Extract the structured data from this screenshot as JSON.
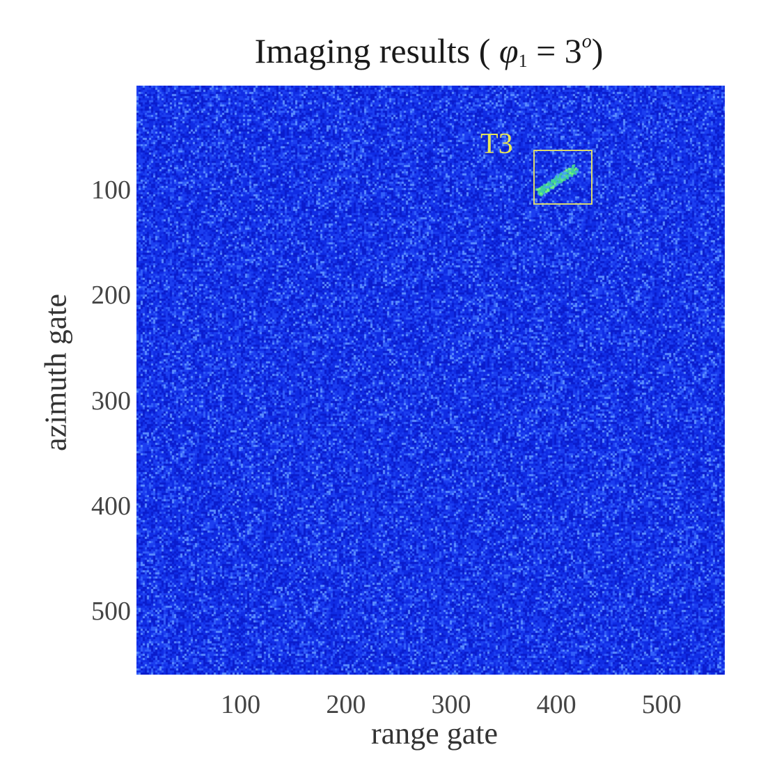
{
  "chart_data": {
    "type": "heatmap",
    "title": "Imaging results ( φ1 = 3° )",
    "title_parts": {
      "prefix": "Imaging results ( ",
      "var": "φ",
      "sub": "1",
      "eq": " = 3",
      "sup": "o",
      "suffix": ")"
    },
    "xlabel": "range gate",
    "ylabel": "azimuth gate",
    "xlim": [
      1,
      560
    ],
    "ylim": [
      560,
      1
    ],
    "x_ticks": [
      100,
      200,
      300,
      400,
      500
    ],
    "y_ticks": [
      100,
      200,
      300,
      400,
      500
    ],
    "y_axis_reversed": true,
    "colormap": "jet",
    "background": "speckle noise (blue, low intensity)",
    "grid": false,
    "annotations": [
      {
        "label": "T3",
        "type": "rectangle",
        "x_range": [
          378,
          434
        ],
        "y_range": [
          62,
          114
        ],
        "target_center": [
          400,
          90
        ],
        "target_orientation": "diagonal streak",
        "color": "#d8d870"
      }
    ]
  },
  "labels": {
    "annotation_t3": "T3"
  },
  "colors": {
    "background_blue": "#1030e8",
    "speckle_light": "#3a6cff",
    "target_green": "#40e060",
    "box_yellow": "#d8d870"
  }
}
